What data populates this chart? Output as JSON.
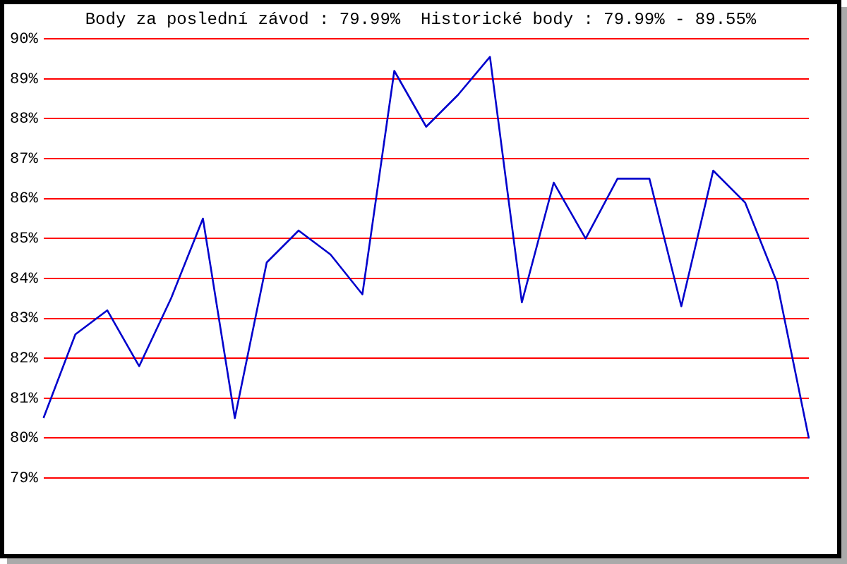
{
  "chart_data": {
    "type": "line",
    "title": "Body za poslední závod : 79.99%  Historické body : 79.99% - 89.55%",
    "categories": [
      null,
      null,
      null,
      null,
      null,
      null,
      null,
      null,
      null,
      null,
      null,
      null,
      null,
      null,
      null,
      null,
      null,
      null,
      null,
      null,
      null,
      null,
      null,
      null,
      null
    ],
    "series": [
      {
        "color": "#0000cc",
        "values": [
          80.5,
          82.6,
          83.2,
          81.8,
          83.5,
          85.5,
          80.5,
          84.4,
          85.2,
          84.6,
          83.6,
          89.2,
          87.8,
          88.6,
          89.55,
          83.4,
          86.4,
          85.0,
          86.5,
          86.5,
          83.3,
          86.7,
          85.9,
          83.9,
          79.99
        ]
      }
    ],
    "ylim": [
      79,
      90
    ],
    "yticks": [
      {
        "value": 79,
        "label": "79%"
      },
      {
        "value": 80,
        "label": "80%"
      },
      {
        "value": 81,
        "label": "81%"
      },
      {
        "value": 82,
        "label": "82%"
      },
      {
        "value": 83,
        "label": "83%"
      },
      {
        "value": 84,
        "label": "84%"
      },
      {
        "value": 85,
        "label": "85%"
      },
      {
        "value": 86,
        "label": "86%"
      },
      {
        "value": 87,
        "label": "87%"
      },
      {
        "value": 88,
        "label": "88%"
      },
      {
        "value": 89,
        "label": "89%"
      },
      {
        "value": 90,
        "label": "90%"
      }
    ],
    "grid": "y",
    "tick_labels": "y",
    "marker": "none",
    "legend": false
  }
}
